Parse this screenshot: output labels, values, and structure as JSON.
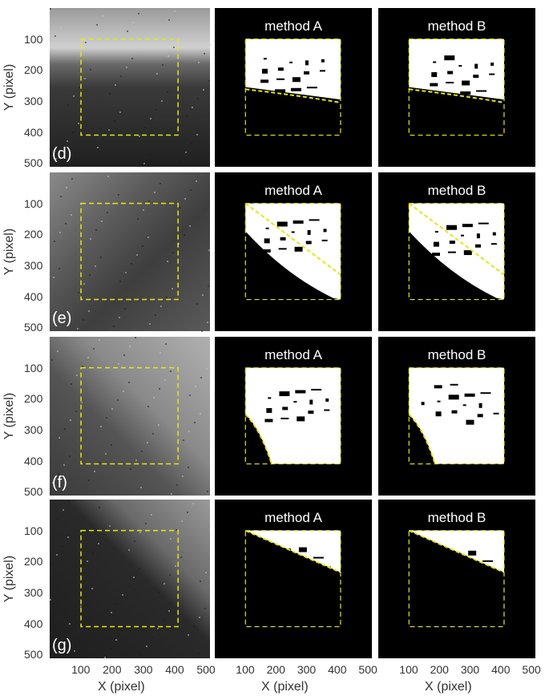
{
  "rows": [
    {
      "id": "d",
      "tag": "(d)",
      "boundary": "horizontal"
    },
    {
      "id": "e",
      "tag": "(e)",
      "boundary": "diagonal"
    },
    {
      "id": "f",
      "tag": "(f)",
      "boundary": "curve"
    },
    {
      "id": "g",
      "tag": "(g)",
      "boundary": "diagonal-shallow"
    }
  ],
  "panel_titles": [
    "method A",
    "method B"
  ],
  "y_axis": {
    "label": "Y (pixel)",
    "ticks": [
      "100",
      "200",
      "300",
      "400",
      "500"
    ]
  },
  "x_axis": {
    "label": "X (pixel)",
    "ticks": [
      "100",
      "200",
      "300",
      "400",
      "500"
    ]
  },
  "colors": {
    "roi_box": "#e6e61a",
    "background": "#000000",
    "mask": "#ffffff",
    "boundary_line": "#e6e61a"
  }
}
